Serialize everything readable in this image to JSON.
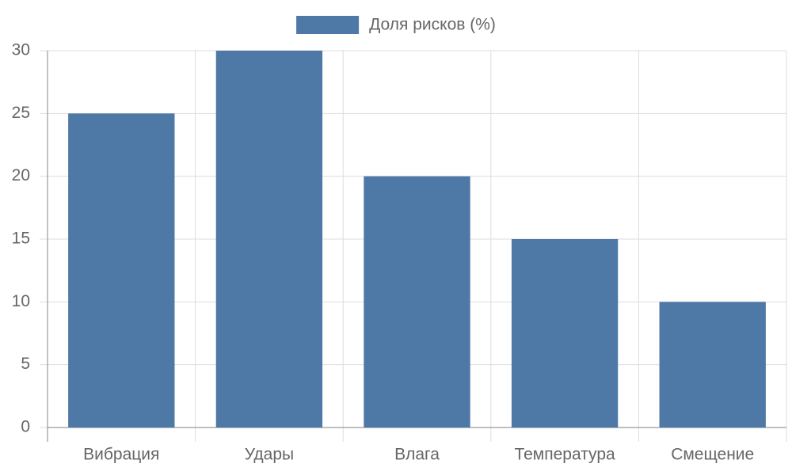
{
  "chart_data": {
    "type": "bar",
    "categories": [
      "Вибрация",
      "Удары",
      "Влага",
      "Температура",
      "Смещение"
    ],
    "series": [
      {
        "name": "Доля рисков (%)",
        "color": "#4e78a6",
        "values": [
          25,
          30,
          20,
          15,
          10
        ]
      }
    ],
    "ylim": [
      0,
      30
    ],
    "yticks": [
      0,
      5,
      10,
      15,
      20,
      25,
      30
    ],
    "grid": true,
    "legend": "top"
  }
}
